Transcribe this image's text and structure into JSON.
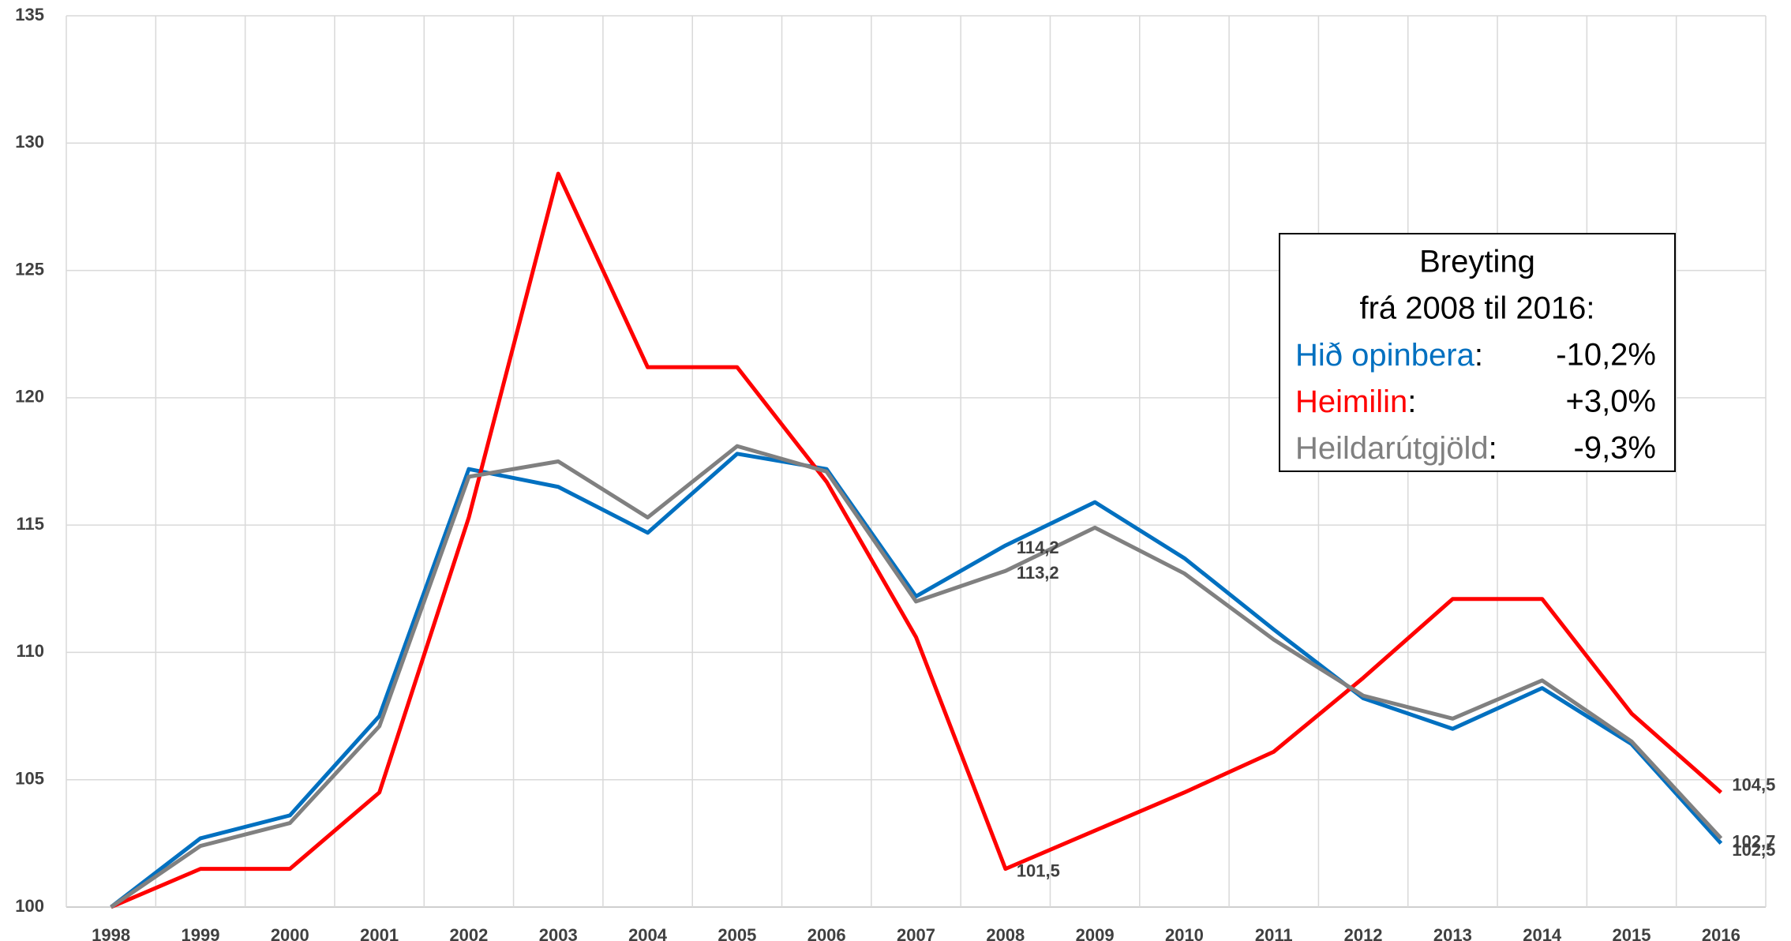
{
  "chart_data": {
    "type": "line",
    "categories": [
      "1998",
      "1999",
      "2000",
      "2001",
      "2002",
      "2003",
      "2004",
      "2005",
      "2006",
      "2007",
      "2008",
      "2009",
      "2010",
      "2011",
      "2012",
      "2013",
      "2014",
      "2015",
      "2016"
    ],
    "series": [
      {
        "name": "Hið opinbera",
        "color": "#0070c0",
        "values": [
          100,
          102.7,
          103.6,
          107.5,
          117.2,
          116.5,
          114.7,
          117.8,
          117.2,
          112.2,
          114.2,
          115.9,
          113.7,
          110.9,
          108.2,
          107.0,
          108.6,
          106.4,
          102.5
        ],
        "value_labels": [
          null,
          null,
          null,
          null,
          null,
          null,
          null,
          null,
          null,
          null,
          "114,2",
          null,
          null,
          null,
          null,
          null,
          null,
          null,
          "102,5"
        ]
      },
      {
        "name": "Heimilin",
        "color": "#ff0000",
        "values": [
          100,
          101.5,
          101.5,
          104.5,
          115.3,
          128.8,
          121.2,
          121.2,
          116.7,
          110.6,
          101.5,
          103.0,
          104.5,
          106.1,
          109.0,
          112.1,
          112.1,
          107.6,
          104.5
        ],
        "value_labels": [
          null,
          null,
          null,
          null,
          null,
          null,
          null,
          null,
          null,
          null,
          "101,5",
          null,
          null,
          null,
          null,
          null,
          null,
          null,
          "104,5"
        ]
      },
      {
        "name": "Heildarútgjöld",
        "color": "#808080",
        "values": [
          100,
          102.4,
          103.3,
          107.1,
          116.9,
          117.5,
          115.3,
          118.1,
          117.1,
          112.0,
          113.2,
          114.9,
          113.1,
          110.5,
          108.3,
          107.4,
          108.9,
          106.5,
          102.7
        ],
        "value_labels": [
          null,
          null,
          null,
          null,
          null,
          null,
          null,
          null,
          null,
          null,
          "113,2",
          null,
          null,
          null,
          null,
          null,
          null,
          null,
          "102,7"
        ]
      }
    ],
    "ylim": [
      100,
      135
    ],
    "yticks": [
      100,
      105,
      110,
      115,
      120,
      125,
      130,
      135
    ],
    "grid": true,
    "legend_box": {
      "title": [
        "Breyting",
        "frá 2008 til 2016:"
      ],
      "separator": ":",
      "changes": [
        "-10,2%",
        "+3,0%",
        "-9,3%"
      ]
    }
  }
}
